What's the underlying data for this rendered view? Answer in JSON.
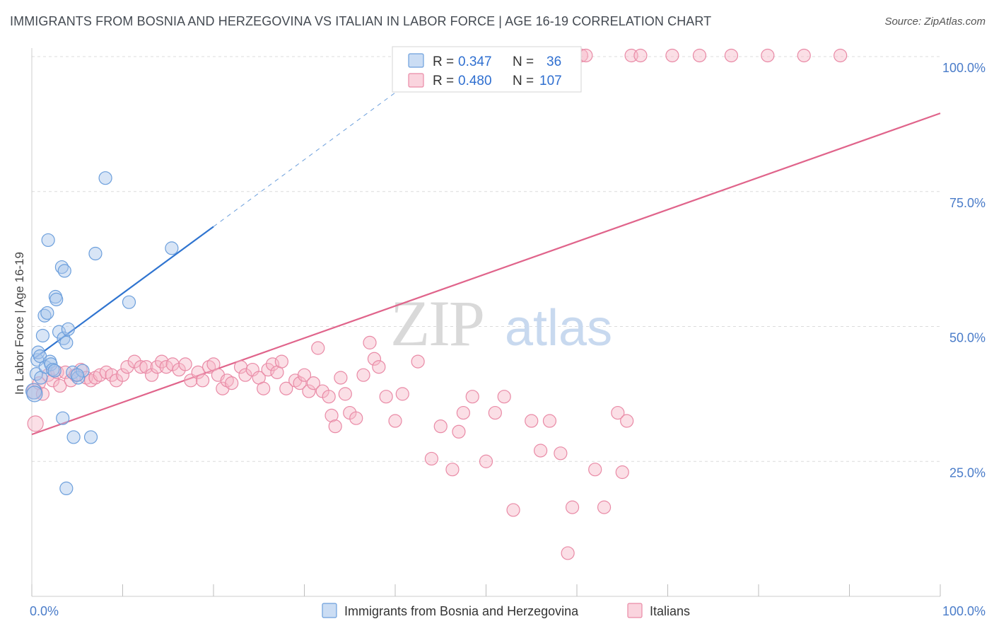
{
  "title": "IMMIGRANTS FROM BOSNIA AND HERZEGOVINA VS ITALIAN IN LABOR FORCE | AGE 16-19 CORRELATION CHART",
  "source": "Source: ZipAtlas.com",
  "watermark": {
    "zip": "ZIP",
    "atlas": "atlas"
  },
  "colors": {
    "blue_fill": "#a8c6ec",
    "blue_stroke": "#6c9fdc",
    "blue_line": "#2f74d0",
    "pink_fill": "#f6b8c8",
    "pink_stroke": "#e98aa6",
    "pink_line": "#e0648b",
    "tick_label": "#4a7cc9",
    "grid": "#dcdcdc"
  },
  "legend_top": {
    "rows": [
      {
        "r_label": "R = ",
        "r_value": "0.347",
        "n_label": "N = ",
        "n_value": "36"
      },
      {
        "r_label": "R = ",
        "r_value": "0.480",
        "n_label": "N = ",
        "n_value": "107"
      }
    ]
  },
  "legend_bottom": {
    "items": [
      "Immigrants from Bosnia and Herzegovina",
      "Italians"
    ]
  },
  "chart_data": {
    "type": "scatter",
    "xlabel": "",
    "ylabel": "In Labor Force | Age 16-19",
    "xlim": [
      0,
      100
    ],
    "ylim": [
      0,
      102
    ],
    "x_tick_labels": [
      {
        "value": 0,
        "label": "0.0%"
      },
      {
        "value": 100,
        "label": "100.0%"
      }
    ],
    "y_tick_labels": [
      {
        "value": 25,
        "label": "25.0%"
      },
      {
        "value": 50,
        "label": "50.0%"
      },
      {
        "value": 75,
        "label": "75.0%"
      },
      {
        "value": 100,
        "label": "100.0%"
      }
    ],
    "x_minor_ticks": [
      0,
      10,
      20,
      30,
      40,
      50,
      60,
      70,
      80,
      90,
      100
    ],
    "grid": true,
    "series": [
      {
        "name": "Immigrants from Bosnia and Herzegovina",
        "color": "#a8c6ec",
        "r": "0.347",
        "n": "36",
        "trend": {
          "x0": 0.2,
          "y0": 44.0,
          "x1": 20.0,
          "y1": 68.5,
          "dash_x1": 47.0,
          "dash_y1": 102.0
        },
        "points": [
          [
            0.2,
            38.0
          ],
          [
            0.3,
            37.5
          ],
          [
            0.5,
            41.2
          ],
          [
            0.6,
            43.8
          ],
          [
            0.7,
            45.2
          ],
          [
            0.9,
            44.5
          ],
          [
            1.0,
            40.5
          ],
          [
            1.2,
            48.3
          ],
          [
            1.4,
            52.0
          ],
          [
            1.5,
            42.5
          ],
          [
            1.7,
            52.5
          ],
          [
            1.8,
            66.0
          ],
          [
            2.0,
            43.5
          ],
          [
            2.1,
            43.0
          ],
          [
            2.3,
            42.0
          ],
          [
            2.5,
            41.8
          ],
          [
            2.6,
            55.5
          ],
          [
            2.7,
            55.0
          ],
          [
            3.0,
            49.0
          ],
          [
            3.3,
            61.0
          ],
          [
            3.5,
            47.8
          ],
          [
            3.6,
            60.3
          ],
          [
            3.8,
            47.0
          ],
          [
            4.0,
            49.5
          ],
          [
            4.5,
            41.5
          ],
          [
            5.1,
            40.5
          ],
          [
            5.6,
            41.8
          ],
          [
            6.5,
            29.5
          ],
          [
            7.0,
            63.5
          ],
          [
            8.1,
            77.5
          ],
          [
            10.7,
            54.5
          ],
          [
            15.4,
            64.5
          ],
          [
            3.4,
            33.0
          ],
          [
            4.6,
            29.5
          ],
          [
            3.8,
            20.0
          ],
          [
            5.0,
            41.0
          ]
        ]
      },
      {
        "name": "Italians",
        "color": "#f6b8c8",
        "r": "0.480",
        "n": "107",
        "trend": {
          "x0": 0.0,
          "y0": 30.0,
          "x1": 100.0,
          "y1": 89.5
        },
        "points": [
          [
            0.3,
            38.0
          ],
          [
            0.4,
            32.0
          ],
          [
            0.8,
            39.5
          ],
          [
            1.2,
            37.5
          ],
          [
            1.8,
            41.0
          ],
          [
            2.3,
            40.0
          ],
          [
            2.8,
            41.5
          ],
          [
            3.1,
            39.0
          ],
          [
            3.7,
            41.5
          ],
          [
            4.3,
            40.0
          ],
          [
            4.8,
            41.0
          ],
          [
            5.4,
            42.0
          ],
          [
            6.0,
            40.5
          ],
          [
            6.5,
            40.0
          ],
          [
            7.0,
            40.5
          ],
          [
            7.5,
            41.0
          ],
          [
            8.2,
            41.5
          ],
          [
            8.8,
            41.0
          ],
          [
            9.3,
            40.0
          ],
          [
            10.0,
            41.0
          ],
          [
            10.5,
            42.5
          ],
          [
            11.3,
            43.5
          ],
          [
            12.0,
            42.5
          ],
          [
            12.6,
            42.5
          ],
          [
            13.2,
            41.0
          ],
          [
            13.8,
            42.5
          ],
          [
            14.3,
            43.5
          ],
          [
            14.8,
            42.5
          ],
          [
            15.5,
            43.0
          ],
          [
            16.2,
            42.0
          ],
          [
            16.9,
            43.0
          ],
          [
            17.5,
            40.0
          ],
          [
            18.3,
            41.5
          ],
          [
            18.8,
            40.0
          ],
          [
            19.5,
            42.5
          ],
          [
            20.0,
            43.0
          ],
          [
            20.5,
            41.0
          ],
          [
            21.0,
            38.5
          ],
          [
            21.5,
            40.0
          ],
          [
            22.0,
            39.5
          ],
          [
            23.0,
            42.5
          ],
          [
            23.5,
            41.0
          ],
          [
            24.3,
            42.0
          ],
          [
            25.0,
            40.5
          ],
          [
            25.5,
            38.5
          ],
          [
            26.0,
            42.0
          ],
          [
            26.5,
            43.0
          ],
          [
            27.0,
            41.5
          ],
          [
            27.5,
            43.5
          ],
          [
            28.0,
            38.5
          ],
          [
            29.0,
            40.0
          ],
          [
            29.5,
            39.5
          ],
          [
            30.0,
            41.0
          ],
          [
            30.5,
            38.0
          ],
          [
            31.0,
            39.5
          ],
          [
            31.5,
            46.0
          ],
          [
            32.0,
            38.0
          ],
          [
            32.7,
            37.0
          ],
          [
            33.0,
            33.5
          ],
          [
            33.4,
            31.5
          ],
          [
            34.0,
            40.5
          ],
          [
            34.5,
            37.5
          ],
          [
            35.0,
            34.0
          ],
          [
            35.7,
            33.0
          ],
          [
            36.5,
            41.0
          ],
          [
            37.2,
            47.0
          ],
          [
            37.7,
            44.0
          ],
          [
            38.2,
            42.5
          ],
          [
            39.0,
            37.0
          ],
          [
            40.0,
            32.5
          ],
          [
            40.8,
            37.5
          ],
          [
            42.5,
            43.5
          ],
          [
            44.0,
            25.5
          ],
          [
            45.0,
            31.5
          ],
          [
            46.3,
            23.5
          ],
          [
            47.0,
            30.5
          ],
          [
            47.5,
            34.0
          ],
          [
            48.5,
            37.0
          ],
          [
            50.0,
            25.0
          ],
          [
            51.0,
            34.0
          ],
          [
            52.0,
            37.0
          ],
          [
            53.0,
            16.0
          ],
          [
            55.0,
            32.5
          ],
          [
            56.0,
            27.0
          ],
          [
            57.0,
            32.5
          ],
          [
            58.2,
            26.5
          ],
          [
            59.0,
            8.0
          ],
          [
            59.5,
            16.5
          ],
          [
            62.0,
            23.5
          ],
          [
            63.0,
            16.5
          ],
          [
            64.5,
            34.0
          ],
          [
            65.0,
            23.0
          ],
          [
            65.5,
            32.5
          ],
          [
            53.0,
            95.5
          ],
          [
            54.0,
            100.2
          ],
          [
            55.0,
            100.2
          ],
          [
            60.5,
            100.2
          ],
          [
            61.0,
            100.2
          ],
          [
            66.0,
            100.2
          ],
          [
            67.0,
            100.2
          ],
          [
            70.5,
            100.2
          ],
          [
            73.5,
            100.2
          ],
          [
            77.0,
            100.2
          ],
          [
            81.0,
            100.2
          ],
          [
            85.0,
            100.2
          ],
          [
            89.0,
            100.2
          ],
          [
            58.0,
            100.2
          ]
        ]
      }
    ]
  }
}
